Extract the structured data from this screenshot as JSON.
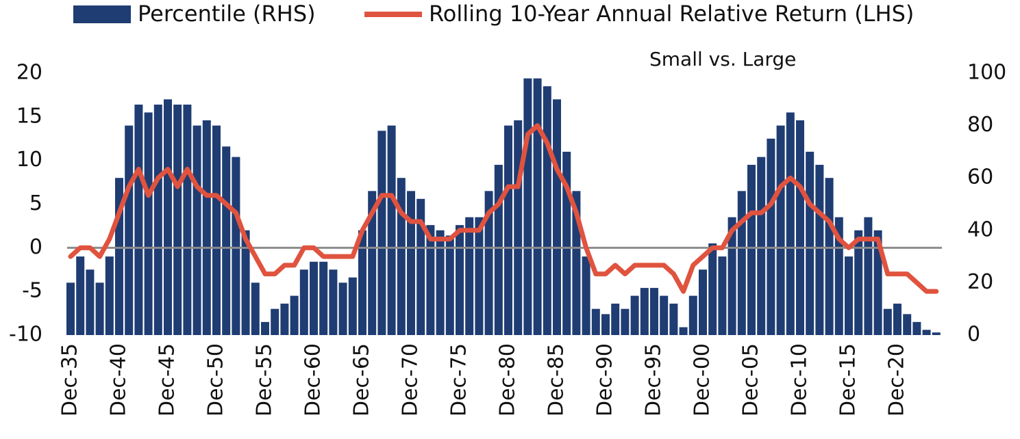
{
  "chart_data": {
    "type": "combo",
    "annotation": "Small vs. Large",
    "categories": [
      "Dec-35",
      null,
      null,
      null,
      null,
      "Dec-40",
      null,
      null,
      null,
      null,
      "Dec-45",
      null,
      null,
      null,
      null,
      "Dec-50",
      null,
      null,
      null,
      null,
      "Dec-55",
      null,
      null,
      null,
      null,
      "Dec-60",
      null,
      null,
      null,
      null,
      "Dec-65",
      null,
      null,
      null,
      null,
      "Dec-70",
      null,
      null,
      null,
      null,
      "Dec-75",
      null,
      null,
      null,
      null,
      "Dec-80",
      null,
      null,
      null,
      null,
      "Dec-85",
      null,
      null,
      null,
      null,
      "Dec-90",
      null,
      null,
      null,
      null,
      "Dec-95",
      null,
      null,
      null,
      null,
      "Dec-00",
      null,
      null,
      null,
      null,
      "Dec-05",
      null,
      null,
      null,
      null,
      "Dec-10",
      null,
      null,
      null,
      null,
      "Dec-15",
      null,
      null,
      null,
      null,
      "Dec-20",
      null,
      null,
      null,
      null
    ],
    "series": [
      {
        "name": "Percentile (RHS)",
        "type": "bar",
        "axis": "y2",
        "color": "#1f3d73",
        "values": [
          20,
          30,
          25,
          20,
          30,
          60,
          80,
          88,
          85,
          88,
          90,
          88,
          88,
          80,
          82,
          80,
          72,
          68,
          40,
          20,
          5,
          10,
          12,
          15,
          25,
          28,
          28,
          25,
          20,
          22,
          40,
          55,
          78,
          80,
          60,
          55,
          52,
          42,
          40,
          38,
          42,
          45,
          45,
          55,
          65,
          80,
          82,
          98,
          98,
          95,
          90,
          70,
          55,
          30,
          10,
          8,
          12,
          10,
          15,
          18,
          18,
          15,
          12,
          3,
          15,
          25,
          35,
          30,
          45,
          55,
          65,
          68,
          75,
          80,
          85,
          82,
          70,
          65,
          60,
          45,
          30,
          40,
          45,
          40,
          10,
          12,
          8,
          5,
          2,
          1
        ]
      },
      {
        "name": "Rolling 10-Year Annual Relative Return (LHS)",
        "type": "line",
        "axis": "y",
        "color": "#e0533f",
        "values": [
          -1,
          0,
          0,
          -1,
          1,
          4,
          7,
          9,
          6,
          8,
          9,
          7,
          9,
          7,
          6,
          6,
          5,
          4,
          1,
          -1,
          -3,
          -3,
          -2,
          -2,
          0,
          0,
          -1,
          -1,
          -1,
          -1,
          2,
          4,
          6,
          6,
          4,
          3,
          3,
          1,
          1,
          1,
          2,
          2,
          2,
          4,
          5,
          7,
          7,
          13,
          14,
          12,
          9,
          7,
          4,
          0,
          -3,
          -3,
          -2,
          -3,
          -2,
          -2,
          -2,
          -2,
          -3,
          -5,
          -2,
          -1,
          0,
          0,
          2,
          3,
          4,
          4,
          5,
          7,
          8,
          7,
          5,
          4,
          3,
          1,
          0,
          1,
          1,
          1,
          -3,
          -3,
          -3,
          -4,
          -5,
          -5
        ]
      }
    ],
    "ylim": [
      -10,
      20
    ],
    "yticks": [
      -10,
      -5,
      0,
      5,
      10,
      15,
      20
    ],
    "y2lim": [
      0,
      100
    ],
    "y2ticks": [
      0,
      20,
      40,
      60,
      80,
      100
    ]
  }
}
